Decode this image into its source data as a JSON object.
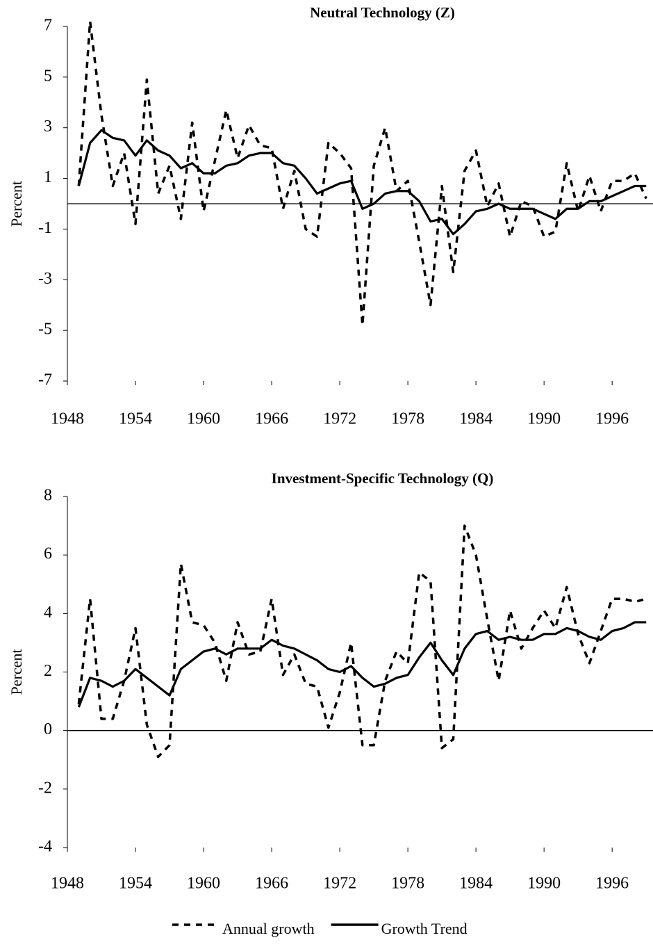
{
  "chart_data": [
    {
      "type": "line",
      "title": "Neutral Technology (Z)",
      "y_label": "Percent",
      "x": [
        1949,
        1950,
        1951,
        1952,
        1953,
        1954,
        1955,
        1956,
        1957,
        1958,
        1959,
        1960,
        1961,
        1962,
        1963,
        1964,
        1965,
        1966,
        1967,
        1968,
        1969,
        1970,
        1971,
        1972,
        1973,
        1974,
        1975,
        1976,
        1977,
        1978,
        1979,
        1980,
        1981,
        1982,
        1983,
        1984,
        1985,
        1986,
        1987,
        1988,
        1989,
        1990,
        1991,
        1992,
        1993,
        1994,
        1995,
        1996,
        1997,
        1998,
        1999
      ],
      "series": [
        {
          "color": "#000000",
          "dash": true,
          "values": [
            0.7,
            7.2,
            3.5,
            0.7,
            2.0,
            -0.8,
            4.9,
            0.4,
            1.5,
            -0.6,
            3.2,
            -0.3,
            1.7,
            3.7,
            1.8,
            3.1,
            2.3,
            2.2,
            -0.2,
            1.3,
            -1.0,
            -1.3,
            2.4,
            2.0,
            1.4,
            -4.8,
            1.5,
            3.0,
            0.5,
            0.9,
            -1.5,
            -4.0,
            0.7,
            -2.7,
            1.3,
            2.1,
            -0.1,
            0.8,
            -1.3,
            0.1,
            -0.1,
            -1.3,
            -1.1,
            1.6,
            -0.3,
            1.1,
            -0.3,
            0.9,
            0.9,
            1.2,
            0.2
          ]
        },
        {
          "color": "#000000",
          "dash": false,
          "values": [
            0.7,
            2.4,
            2.9,
            2.6,
            2.5,
            1.9,
            2.5,
            2.1,
            1.9,
            1.4,
            1.6,
            1.2,
            1.2,
            1.5,
            1.6,
            1.9,
            2.0,
            2.0,
            1.6,
            1.5,
            1.0,
            0.4,
            0.6,
            0.8,
            0.9,
            -0.2,
            0.0,
            0.4,
            0.5,
            0.5,
            0.1,
            -0.7,
            -0.6,
            -1.2,
            -0.8,
            -0.3,
            -0.2,
            0.0,
            -0.2,
            -0.2,
            -0.2,
            -0.4,
            -0.6,
            -0.2,
            -0.2,
            0.1,
            0.1,
            0.3,
            0.5,
            0.7,
            0.7
          ]
        }
      ],
      "xlim": [
        1948,
        1999.6
      ],
      "xticks": [
        1948,
        1954,
        1960,
        1966,
        1972,
        1978,
        1984,
        1990,
        1996
      ],
      "ylim": [
        -7,
        7
      ],
      "yticks": [
        -7,
        -5,
        -3,
        -1,
        1,
        3,
        5,
        7
      ]
    },
    {
      "type": "line",
      "title": "Investment-Specific Technology (Q)",
      "y_label": "Percent",
      "x": [
        1949,
        1950,
        1951,
        1952,
        1953,
        1954,
        1955,
        1956,
        1957,
        1958,
        1959,
        1960,
        1961,
        1962,
        1963,
        1964,
        1965,
        1966,
        1967,
        1968,
        1969,
        1970,
        1971,
        1972,
        1973,
        1974,
        1975,
        1976,
        1977,
        1978,
        1979,
        1980,
        1981,
        1982,
        1983,
        1984,
        1985,
        1986,
        1987,
        1988,
        1989,
        1990,
        1991,
        1992,
        1993,
        1994,
        1995,
        1996,
        1997,
        1998,
        1999
      ],
      "series": [
        {
          "name": "Annual growth",
          "color": "#000000",
          "dash": true,
          "values": [
            0.9,
            4.5,
            0.4,
            0.4,
            1.7,
            3.5,
            0.2,
            -0.9,
            -0.5,
            5.7,
            3.7,
            3.6,
            3.0,
            1.7,
            3.7,
            2.6,
            2.7,
            4.5,
            1.9,
            2.6,
            1.6,
            1.5,
            0.1,
            1.3,
            3.0,
            -0.5,
            -0.5,
            1.7,
            2.7,
            2.3,
            5.4,
            5.1,
            -0.6,
            -0.3,
            7.0,
            6.0,
            3.8,
            1.7,
            4.1,
            2.8,
            3.5,
            4.1,
            3.5,
            4.9,
            3.3,
            2.3,
            3.4,
            4.5,
            4.5,
            4.4,
            4.5
          ]
        },
        {
          "name": "Growth Trend",
          "color": "#000000",
          "dash": false,
          "values": [
            0.8,
            1.8,
            1.7,
            1.5,
            1.7,
            2.1,
            1.8,
            1.5,
            1.2,
            2.1,
            2.4,
            2.7,
            2.8,
            2.6,
            2.8,
            2.8,
            2.8,
            3.1,
            2.9,
            2.8,
            2.6,
            2.4,
            2.1,
            2.0,
            2.2,
            1.8,
            1.5,
            1.6,
            1.8,
            1.9,
            2.5,
            3.0,
            2.4,
            1.9,
            2.8,
            3.3,
            3.4,
            3.1,
            3.2,
            3.1,
            3.1,
            3.3,
            3.3,
            3.5,
            3.4,
            3.2,
            3.1,
            3.4,
            3.5,
            3.7,
            3.7
          ]
        }
      ],
      "xlim": [
        1948,
        1999.6
      ],
      "xticks": [
        1948,
        1954,
        1960,
        1966,
        1972,
        1978,
        1984,
        1990,
        1996
      ],
      "ylim": [
        -4,
        8
      ],
      "yticks": [
        -4,
        -2,
        0,
        2,
        4,
        6,
        8
      ]
    }
  ]
}
